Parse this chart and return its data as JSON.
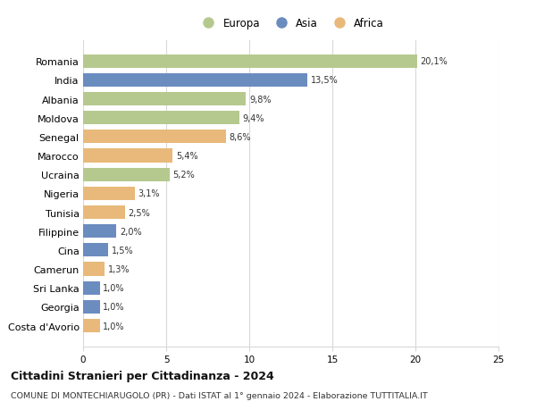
{
  "countries": [
    "Romania",
    "India",
    "Albania",
    "Moldova",
    "Senegal",
    "Marocco",
    "Ucraina",
    "Nigeria",
    "Tunisia",
    "Filippine",
    "Cina",
    "Camerun",
    "Sri Lanka",
    "Georgia",
    "Costa d'Avorio"
  ],
  "values": [
    20.1,
    13.5,
    9.8,
    9.4,
    8.6,
    5.4,
    5.2,
    3.1,
    2.5,
    2.0,
    1.5,
    1.3,
    1.0,
    1.0,
    1.0
  ],
  "labels": [
    "20,1%",
    "13,5%",
    "9,8%",
    "9,4%",
    "8,6%",
    "5,4%",
    "5,2%",
    "3,1%",
    "2,5%",
    "2,0%",
    "1,5%",
    "1,3%",
    "1,0%",
    "1,0%",
    "1,0%"
  ],
  "continents": [
    "Europa",
    "Asia",
    "Europa",
    "Europa",
    "Africa",
    "Africa",
    "Europa",
    "Africa",
    "Africa",
    "Asia",
    "Asia",
    "Africa",
    "Asia",
    "Asia",
    "Africa"
  ],
  "colors": {
    "Europa": "#b5c98e",
    "Asia": "#6b8cbf",
    "Africa": "#e8b97a"
  },
  "title": "Cittadini Stranieri per Cittadinanza - 2024",
  "subtitle": "COMUNE DI MONTECHIARUGOLO (PR) - Dati ISTAT al 1° gennaio 2024 - Elaborazione TUTTITALIA.IT",
  "xlim": [
    0,
    25
  ],
  "xticks": [
    0,
    5,
    10,
    15,
    20,
    25
  ],
  "bg_color": "#ffffff",
  "grid_color": "#d8d8d8",
  "legend_order": [
    "Europa",
    "Asia",
    "Africa"
  ]
}
